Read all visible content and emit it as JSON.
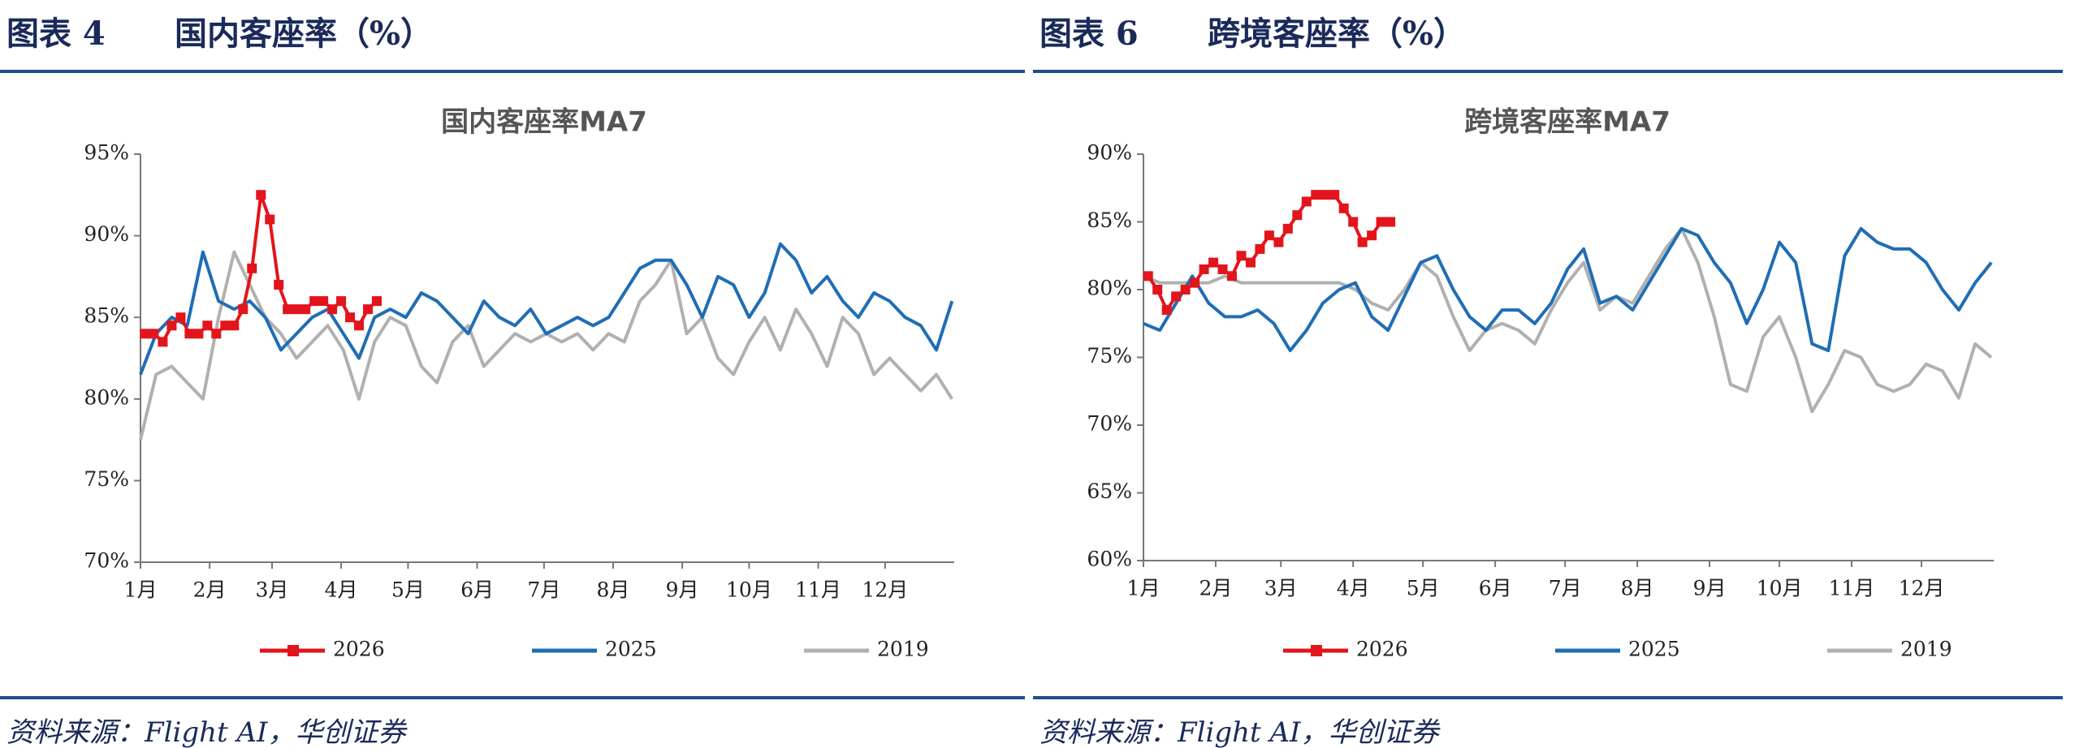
{
  "chart_data": [
    {
      "type": "line",
      "figure_label": "图表 4",
      "heading": "国内客座率（%）",
      "title": "国内客座率MA7",
      "source": "资料来源：Flight AI，华创证券",
      "xlim": [
        0,
        365
      ],
      "xticks": [
        {
          "value": 0,
          "label": "1月"
        },
        {
          "value": 31,
          "label": "2月"
        },
        {
          "value": 59,
          "label": "3月"
        },
        {
          "value": 90,
          "label": "4月"
        },
        {
          "value": 120,
          "label": "5月"
        },
        {
          "value": 151,
          "label": "6月"
        },
        {
          "value": 181,
          "label": "7月"
        },
        {
          "value": 212,
          "label": "8月"
        },
        {
          "value": 243,
          "label": "9月"
        },
        {
          "value": 273,
          "label": "10月"
        },
        {
          "value": 304,
          "label": "11月"
        },
        {
          "value": 334,
          "label": "12月"
        }
      ],
      "ylim": [
        70,
        95
      ],
      "yticks": [
        {
          "value": 70,
          "label": "70%"
        },
        {
          "value": 75,
          "label": "75%"
        },
        {
          "value": 80,
          "label": "80%"
        },
        {
          "value": 85,
          "label": "85%"
        },
        {
          "value": 90,
          "label": "90%"
        },
        {
          "value": 95,
          "label": "95%"
        }
      ],
      "series": [
        {
          "name": "2026",
          "color": "#e3141b",
          "markers": true,
          "x": [
            2,
            6,
            10,
            14,
            18,
            22,
            26,
            30,
            34,
            38,
            42,
            46,
            50,
            54,
            58,
            62,
            66,
            70,
            74,
            78,
            82,
            86,
            90,
            94,
            98,
            102,
            106
          ],
          "values": [
            84,
            84,
            83.5,
            84.5,
            85,
            84,
            84,
            84.5,
            84,
            84.5,
            84.5,
            85.5,
            88,
            92.5,
            91,
            87,
            85.5,
            85.5,
            85.5,
            86,
            86,
            85.5,
            86,
            85,
            84.5,
            85.5,
            86
          ]
        },
        {
          "name": "2025",
          "color": "#1f6db5",
          "markers": false,
          "x": [
            0,
            7,
            14,
            21,
            28,
            35,
            42,
            49,
            56,
            63,
            70,
            77,
            84,
            91,
            98,
            105,
            112,
            119,
            126,
            133,
            140,
            147,
            154,
            161,
            168,
            175,
            182,
            189,
            196,
            203,
            210,
            217,
            224,
            231,
            238,
            245,
            252,
            259,
            266,
            273,
            280,
            287,
            294,
            301,
            308,
            315,
            322,
            329,
            336,
            343,
            350,
            357,
            364
          ],
          "values": [
            81.5,
            84,
            85,
            84.5,
            89,
            86,
            85.5,
            86,
            85,
            83,
            84,
            85,
            85.5,
            84,
            82.5,
            85,
            85.5,
            85,
            86.5,
            86,
            85,
            84,
            86,
            85,
            84.5,
            85.5,
            84,
            84.5,
            85,
            84.5,
            85,
            86.5,
            88,
            88.5,
            88.5,
            87,
            85,
            87.5,
            87,
            85,
            86.5,
            89.5,
            88.5,
            86.5,
            87.5,
            86,
            85,
            86.5,
            86,
            85,
            84.5,
            83,
            86
          ]
        },
        {
          "name": "2019",
          "color": "#b0b0b0",
          "markers": false,
          "x": [
            0,
            7,
            14,
            21,
            28,
            35,
            42,
            49,
            56,
            63,
            70,
            77,
            84,
            91,
            98,
            105,
            112,
            119,
            126,
            133,
            140,
            147,
            154,
            161,
            168,
            175,
            182,
            189,
            196,
            203,
            210,
            217,
            224,
            231,
            238,
            245,
            252,
            259,
            266,
            273,
            280,
            287,
            294,
            301,
            308,
            315,
            322,
            329,
            336,
            343,
            350,
            357,
            364
          ],
          "values": [
            77.5,
            81.5,
            82,
            81,
            80,
            85,
            89,
            87,
            85,
            84,
            82.5,
            83.5,
            84.5,
            83,
            80,
            83.5,
            85,
            84.5,
            82,
            81,
            83.5,
            84.5,
            82,
            83,
            84,
            83.5,
            84,
            83.5,
            84,
            83,
            84,
            83.5,
            86,
            87,
            88.5,
            84,
            85,
            82.5,
            81.5,
            83.5,
            85,
            83,
            85.5,
            84,
            82,
            85,
            84,
            81.5,
            82.5,
            81.5,
            80.5,
            81.5,
            80
          ]
        }
      ]
    },
    {
      "type": "line",
      "figure_label": "图表 6",
      "heading": "跨境客座率（%）",
      "title": "跨境客座率MA7",
      "source": "资料来源：Flight AI，华创证券",
      "xlim": [
        0,
        365
      ],
      "xticks": [
        {
          "value": 0,
          "label": "1月"
        },
        {
          "value": 31,
          "label": "2月"
        },
        {
          "value": 59,
          "label": "3月"
        },
        {
          "value": 90,
          "label": "4月"
        },
        {
          "value": 120,
          "label": "5月"
        },
        {
          "value": 151,
          "label": "6月"
        },
        {
          "value": 181,
          "label": "7月"
        },
        {
          "value": 212,
          "label": "8月"
        },
        {
          "value": 243,
          "label": "9月"
        },
        {
          "value": 273,
          "label": "10月"
        },
        {
          "value": 304,
          "label": "11月"
        },
        {
          "value": 334,
          "label": "12月"
        }
      ],
      "ylim": [
        60,
        90
      ],
      "yticks": [
        {
          "value": 60,
          "label": "60%"
        },
        {
          "value": 65,
          "label": "65%"
        },
        {
          "value": 70,
          "label": "70%"
        },
        {
          "value": 75,
          "label": "75%"
        },
        {
          "value": 80,
          "label": "80%"
        },
        {
          "value": 85,
          "label": "85%"
        },
        {
          "value": 90,
          "label": "90%"
        }
      ],
      "series": [
        {
          "name": "2026",
          "color": "#e3141b",
          "markers": true,
          "x": [
            2,
            6,
            10,
            14,
            18,
            22,
            26,
            30,
            34,
            38,
            42,
            46,
            50,
            54,
            58,
            62,
            66,
            70,
            74,
            78,
            82,
            86,
            90,
            94,
            98,
            102,
            106
          ],
          "values": [
            81,
            80,
            78.5,
            79.5,
            80,
            80.5,
            81.5,
            82,
            81.5,
            81,
            82.5,
            82,
            83,
            84,
            83.5,
            84.5,
            85.5,
            86.5,
            87,
            87,
            87,
            86,
            85,
            83.5,
            84,
            85,
            85
          ]
        },
        {
          "name": "2025",
          "color": "#1f6db5",
          "markers": false,
          "x": [
            0,
            7,
            14,
            21,
            28,
            35,
            42,
            49,
            56,
            63,
            70,
            77,
            84,
            91,
            98,
            105,
            112,
            119,
            126,
            133,
            140,
            147,
            154,
            161,
            168,
            175,
            182,
            189,
            196,
            203,
            210,
            217,
            224,
            231,
            238,
            245,
            252,
            259,
            266,
            273,
            280,
            287,
            294,
            301,
            308,
            315,
            322,
            329,
            336,
            343,
            350,
            357,
            364
          ],
          "values": [
            77.5,
            77,
            79,
            81,
            79,
            78,
            78,
            78.5,
            77.5,
            75.5,
            77,
            79,
            80,
            80.5,
            78,
            77,
            79.5,
            82,
            82.5,
            80,
            78,
            77,
            78.5,
            78.5,
            77.5,
            79,
            81.5,
            83,
            79,
            79.5,
            78.5,
            80.5,
            82.5,
            84.5,
            84,
            82,
            80.5,
            77.5,
            80,
            83.5,
            82,
            76,
            75.5,
            82.5,
            84.5,
            83.5,
            83,
            83,
            82,
            80,
            78.5,
            80.5,
            82
          ]
        },
        {
          "name": "2019",
          "color": "#b0b0b0",
          "markers": false,
          "x": [
            0,
            7,
            14,
            21,
            28,
            35,
            42,
            49,
            56,
            63,
            70,
            77,
            84,
            91,
            98,
            105,
            112,
            119,
            126,
            133,
            140,
            147,
            154,
            161,
            168,
            175,
            182,
            189,
            196,
            203,
            210,
            217,
            224,
            231,
            238,
            245,
            252,
            259,
            266,
            273,
            280,
            287,
            294,
            301,
            308,
            315,
            322,
            329,
            336,
            343,
            350,
            357,
            364
          ],
          "values": [
            81,
            80.5,
            80.5,
            80.5,
            80.5,
            81,
            80.5,
            80.5,
            80.5,
            80.5,
            80.5,
            80.5,
            80.5,
            80,
            79,
            78.5,
            80,
            82,
            81,
            78,
            75.5,
            77,
            77.5,
            77,
            76,
            78.5,
            80.5,
            82,
            78.5,
            79.5,
            79,
            81,
            83,
            84.5,
            82,
            78,
            73,
            72.5,
            76.5,
            78,
            75,
            71,
            73,
            75.5,
            75,
            73,
            72.5,
            73,
            74.5,
            74,
            72,
            76,
            75
          ]
        }
      ]
    }
  ]
}
